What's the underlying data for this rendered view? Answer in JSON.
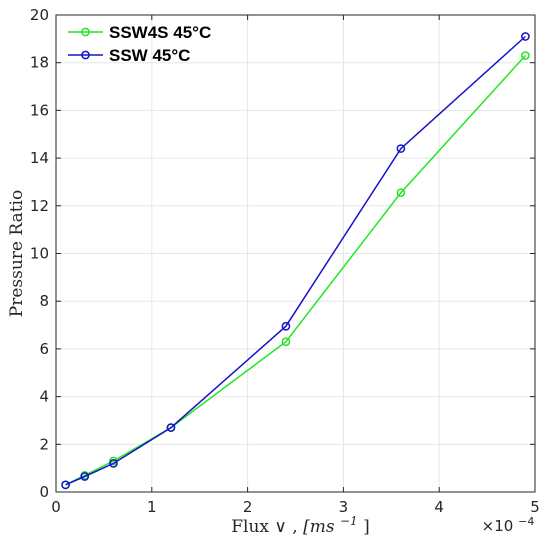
{
  "chart_data": {
    "type": "line",
    "xlabel_text": "Flux ∨ ,",
    "xlabel_unit_base": "[ms",
    "xlabel_unit_sup": "−1",
    "xlabel_unit_close": "]",
    "ylabel": "Pressure Ratio",
    "x_exponent_base": "×10",
    "x_exponent_power": "−4",
    "xlim": [
      0,
      5
    ],
    "ylim": [
      0,
      20
    ],
    "x_ticks": [
      "0",
      "1",
      "2",
      "3",
      "4",
      "5"
    ],
    "y_ticks": [
      "0",
      "2",
      "4",
      "6",
      "8",
      "10",
      "12",
      "14",
      "16",
      "18",
      "20"
    ],
    "grid": true,
    "legend_position": "top-left",
    "series": [
      {
        "name": "SSW4S 45°C",
        "color": "#22e622",
        "x": [
          0.1,
          0.3,
          0.6,
          1.2,
          2.4,
          3.6,
          4.9
        ],
        "y": [
          0.3,
          0.7,
          1.3,
          2.7,
          6.3,
          12.55,
          18.3
        ]
      },
      {
        "name": "SSW 45°C",
        "color": "#1414c8",
        "x": [
          0.1,
          0.3,
          0.6,
          1.2,
          2.4,
          3.6,
          4.9
        ],
        "y": [
          0.3,
          0.65,
          1.2,
          2.7,
          6.95,
          14.4,
          19.1
        ]
      }
    ]
  }
}
